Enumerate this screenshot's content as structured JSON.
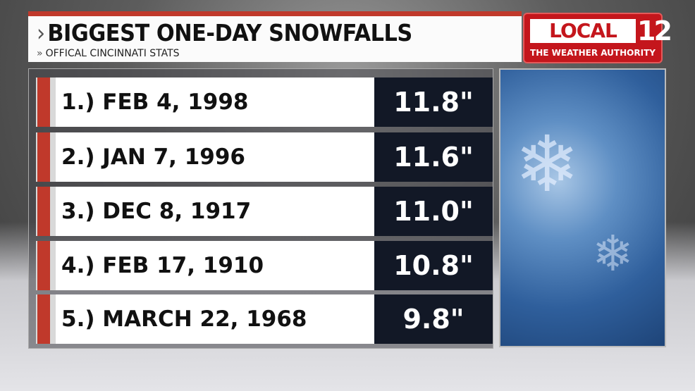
{
  "header": {
    "title": "BIGGEST ONE-DAY SNOWFALLS",
    "subtitle": "OFFICAL CINCINNATI STATS",
    "title_chevron": "›",
    "subtitle_chevron": "»"
  },
  "logo": {
    "brand": "LOCAL",
    "number": "12",
    "tagline": "THE WEATHER AUTHORITY",
    "color": "#c4161c"
  },
  "rows": [
    {
      "label": "1.) FEB 4, 1998",
      "value": "11.8\""
    },
    {
      "label": "2.) JAN 7, 1996",
      "value": "11.6\""
    },
    {
      "label": "3.) DEC 8, 1917",
      "value": "11.0\""
    },
    {
      "label": "4.) FEB 17, 1910",
      "value": "10.8\""
    },
    {
      "label": "5.) MARCH 22, 1968",
      "value": "9.8\""
    }
  ],
  "colors": {
    "accent": "#c0392b",
    "value_bg": "#121826"
  }
}
